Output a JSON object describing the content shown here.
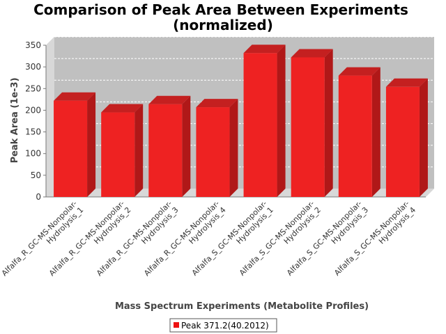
{
  "chart_data": {
    "type": "bar",
    "title_line1": "Comparison of Peak Area Between Experiments",
    "title_line2": "(normalized)",
    "xlabel": "Mass Spectrum Experiments (Metabolite Profiles)",
    "ylabel": "Peak Area (1e-3)",
    "ylim": [
      0,
      350
    ],
    "yticks": [
      "0",
      "50",
      "100",
      "150",
      "200",
      "250",
      "300",
      "350"
    ],
    "categories": [
      [
        "Alfalfa_R_GC-MS-Nonpolar-",
        "Hydrolysis_1"
      ],
      [
        "Alfalfa_R_GC-MS-Nonpolar-",
        "Hydrolysis_2"
      ],
      [
        "Alfalfa_R_GC-MS-Nonpolar-",
        "Hydrolysis_3"
      ],
      [
        "Alfalfa_R_GC-MS-Nonpolar-",
        "Hydrolysis_4"
      ],
      [
        "Alfalfa_S_GC-MS-Nonpolar-",
        "Hydrolysis_1"
      ],
      [
        "Alfalfa_S_GC-MS-Nonpolar-",
        "Hydrolysis_2"
      ],
      [
        "Alfalfa_S_GC-MS-Nonpolar-",
        "Hydrolysis_3"
      ],
      [
        "Alfalfa_S_GC-MS-Nonpolar-",
        "Hydrolysis_4"
      ]
    ],
    "series": [
      {
        "name": "Peak 371.2(40.2012)",
        "values": [
          222,
          195,
          214,
          207,
          332,
          322,
          280,
          254
        ],
        "color": "#ee1111"
      }
    ],
    "grid": true,
    "legend": "bottom-center",
    "colors": {
      "plot_background": "#c0c0c0",
      "wall": "#d8d8d8",
      "bar_front": "#ee2222",
      "bar_side": "#b01818",
      "bar_top": "#c42020"
    }
  }
}
